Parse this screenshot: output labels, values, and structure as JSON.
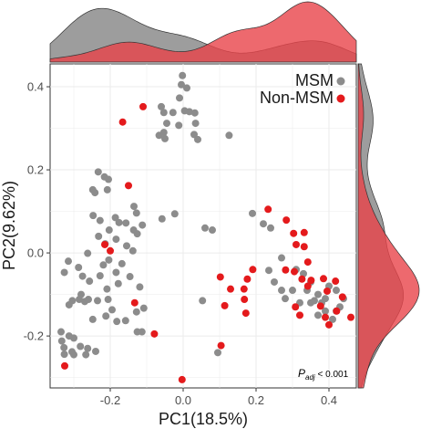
{
  "chart_data": {
    "type": "scatter",
    "xlabel": "PC1(18.5%)",
    "ylabel": "PC2(9.62%)",
    "xlim": [
      -0.365,
      0.475
    ],
    "ylim": [
      -0.325,
      0.455
    ],
    "x_ticks": [
      -0.2,
      0.0,
      0.2,
      0.4
    ],
    "x_tick_labels": [
      "-0.2",
      "0.0",
      "0.2",
      "0.4"
    ],
    "y_ticks": [
      -0.2,
      0.0,
      0.2,
      0.4
    ],
    "y_tick_labels": [
      "-0.2",
      "0.0",
      "0.2",
      "0.4"
    ],
    "grid": true,
    "legend_position": "top-right",
    "marginal_plots": "density",
    "annotation": {
      "p_label": "P",
      "p_subscript": "adj",
      "rest": " < 0.001"
    },
    "series": [
      {
        "name": "MSM",
        "color": "#8c8c8c",
        "points": [
          [
            -0.002,
            0.427
          ],
          [
            -0.005,
            0.405
          ],
          [
            0.01,
            0.397
          ],
          [
            -0.01,
            0.373
          ],
          [
            -0.06,
            0.352
          ],
          [
            -0.053,
            0.338
          ],
          [
            0.004,
            0.342
          ],
          [
            0.017,
            0.34
          ],
          [
            0.032,
            0.337
          ],
          [
            -0.028,
            0.338
          ],
          [
            -0.045,
            0.312
          ],
          [
            -0.012,
            0.307
          ],
          [
            0.034,
            0.312
          ],
          [
            -0.053,
            0.29
          ],
          [
            -0.066,
            0.283
          ],
          [
            -0.05,
            0.275
          ],
          [
            0.03,
            0.285
          ],
          [
            0.04,
            0.273
          ],
          [
            0.126,
            0.283
          ],
          [
            -0.233,
            0.195
          ],
          [
            -0.216,
            0.183
          ],
          [
            -0.205,
            0.177
          ],
          [
            -0.248,
            0.152
          ],
          [
            -0.242,
            0.145
          ],
          [
            -0.208,
            0.152
          ],
          [
            -0.135,
            0.112
          ],
          [
            -0.128,
            0.096
          ],
          [
            -0.186,
            0.085
          ],
          [
            -0.247,
            0.09
          ],
          [
            -0.228,
            0.078
          ],
          [
            -0.176,
            0.073
          ],
          [
            -0.157,
            0.072
          ],
          [
            -0.203,
            0.055
          ],
          [
            -0.136,
            0.055
          ],
          [
            -0.023,
            0.094
          ],
          [
            -0.058,
            0.082
          ],
          [
            -0.112,
            0.067
          ],
          [
            -0.126,
            0.046
          ],
          [
            -0.232,
            0.04
          ],
          [
            -0.184,
            0.033
          ],
          [
            -0.214,
            0.022
          ],
          [
            -0.155,
            0.017
          ],
          [
            -0.138,
            0.005
          ],
          [
            -0.262,
            -0.001
          ],
          [
            -0.204,
            -0.017
          ],
          [
            -0.168,
            -0.026
          ],
          [
            -0.219,
            -0.029
          ],
          [
            -0.315,
            -0.02
          ],
          [
            -0.287,
            -0.035
          ],
          [
            -0.326,
            -0.047
          ],
          [
            -0.276,
            -0.056
          ],
          [
            -0.257,
            -0.068
          ],
          [
            -0.228,
            -0.055
          ],
          [
            -0.184,
            -0.047
          ],
          [
            -0.146,
            -0.057
          ],
          [
            -0.178,
            -0.074
          ],
          [
            -0.209,
            -0.087
          ],
          [
            -0.119,
            -0.082
          ],
          [
            -0.28,
            -0.1
          ],
          [
            -0.304,
            -0.115
          ],
          [
            -0.313,
            -0.125
          ],
          [
            -0.285,
            -0.112
          ],
          [
            -0.27,
            -0.117
          ],
          [
            -0.26,
            -0.112
          ],
          [
            -0.235,
            -0.115
          ],
          [
            -0.206,
            -0.112
          ],
          [
            -0.195,
            -0.137
          ],
          [
            -0.248,
            -0.16
          ],
          [
            -0.212,
            -0.152
          ],
          [
            -0.182,
            -0.165
          ],
          [
            -0.158,
            -0.163
          ],
          [
            -0.128,
            -0.142
          ],
          [
            -0.108,
            -0.133
          ],
          [
            -0.313,
            -0.2
          ],
          [
            -0.335,
            -0.19
          ],
          [
            -0.3,
            -0.205
          ],
          [
            -0.333,
            -0.212
          ],
          [
            -0.282,
            -0.225
          ],
          [
            -0.262,
            -0.23
          ],
          [
            -0.305,
            -0.238
          ],
          [
            -0.3,
            -0.245
          ],
          [
            -0.267,
            -0.245
          ],
          [
            -0.24,
            -0.237
          ],
          [
            -0.327,
            -0.228
          ],
          [
            -0.326,
            -0.244
          ],
          [
            -0.126,
            -0.19
          ],
          [
            -0.113,
            -0.19
          ],
          [
            0.053,
            -0.115
          ],
          [
            0.06,
            0.06
          ],
          [
            0.08,
            0.055
          ],
          [
            0.095,
            -0.24
          ],
          [
            0.22,
            0.07
          ],
          [
            0.19,
            0.095
          ],
          [
            0.24,
            0.06
          ],
          [
            0.27,
            -0.012
          ],
          [
            0.235,
            -0.042
          ],
          [
            0.25,
            -0.07
          ],
          [
            0.27,
            -0.09
          ],
          [
            0.28,
            -0.11
          ],
          [
            0.3,
            -0.09
          ],
          [
            0.32,
            -0.12
          ],
          [
            0.34,
            -0.09
          ],
          [
            0.35,
            -0.07
          ],
          [
            0.37,
            -0.1
          ],
          [
            0.39,
            -0.14
          ],
          [
            0.42,
            -0.14
          ],
          [
            0.36,
            -0.115
          ],
          [
            0.4,
            -0.08
          ],
          [
            0.42,
            -0.09
          ],
          [
            0.44,
            -0.11
          ],
          [
            0.33,
            -0.05
          ],
          [
            0.38,
            -0.12
          ],
          [
            0.37,
            -0.15
          ],
          [
            0.41,
            -0.16
          ],
          [
            0.43,
            -0.13
          ],
          [
            0.39,
            -0.11
          ],
          [
            0.31,
            -0.04
          ],
          [
            0.35,
            -0.12
          ]
        ]
      },
      {
        "name": "Non-MSM",
        "color": "#e41a1c",
        "points": [
          [
            -0.166,
            0.315
          ],
          [
            -0.11,
            0.352
          ],
          [
            -0.15,
            0.162
          ],
          [
            -0.215,
            0.02
          ],
          [
            -0.2,
            0.005
          ],
          [
            -0.133,
            -0.12
          ],
          [
            -0.079,
            -0.195
          ],
          [
            -0.325,
            -0.272
          ],
          [
            -0.003,
            -0.305
          ],
          [
            0.104,
            -0.223
          ],
          [
            0.102,
            -0.058
          ],
          [
            0.114,
            -0.127
          ],
          [
            0.176,
            -0.063
          ],
          [
            0.167,
            -0.087
          ],
          [
            0.13,
            -0.087
          ],
          [
            0.168,
            -0.112
          ],
          [
            0.172,
            -0.145
          ],
          [
            0.191,
            -0.04
          ],
          [
            0.233,
            0.105
          ],
          [
            0.283,
            0.079
          ],
          [
            0.303,
            0.047
          ],
          [
            0.332,
            0.049
          ],
          [
            0.31,
            0.02
          ],
          [
            0.332,
            0.015
          ],
          [
            0.281,
            -0.041
          ],
          [
            0.305,
            -0.045
          ],
          [
            0.342,
            -0.022
          ],
          [
            0.326,
            -0.063
          ],
          [
            0.342,
            -0.08
          ],
          [
            0.385,
            -0.062
          ],
          [
            0.395,
            -0.092
          ],
          [
            0.418,
            -0.068
          ],
          [
            0.437,
            -0.106
          ],
          [
            0.377,
            -0.128
          ],
          [
            0.421,
            -0.14
          ],
          [
            0.46,
            -0.155
          ],
          [
            0.308,
            -0.13
          ],
          [
            0.32,
            -0.15
          ],
          [
            0.39,
            -0.155
          ],
          [
            0.4,
            -0.173
          ],
          [
            0.351,
            -0.066
          ]
        ]
      }
    ]
  }
}
